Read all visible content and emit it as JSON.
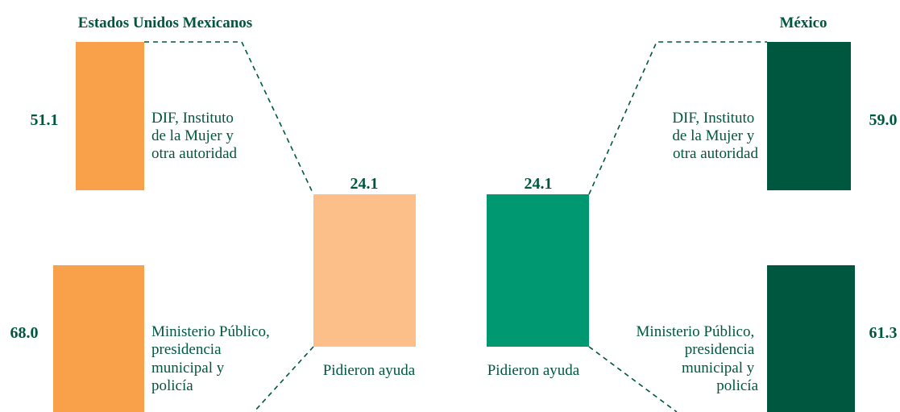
{
  "left": {
    "title": "Estados Unidos Mexicanos",
    "top": {
      "value": "51.1",
      "label": [
        "DIF,  Instituto",
        "de la Mujer y",
        "otra autoridad"
      ]
    },
    "bottom": {
      "value": "68.0",
      "label": [
        "Ministerio Público,",
        "presidencia",
        "municipal y",
        "policía"
      ]
    },
    "center": {
      "value": "24.1",
      "label": "Pidieron ayuda"
    }
  },
  "right": {
    "title": "México",
    "top": {
      "value": "59.0",
      "label": [
        "DIF,  Instituto",
        "de la Mujer y",
        "otra autoridad"
      ]
    },
    "bottom": {
      "value": "61.3",
      "label": [
        "Ministerio Público,",
        "presidencia",
        "municipal y",
        "policía"
      ]
    },
    "center": {
      "value": "24.1",
      "label": "Pidieron ayuda"
    }
  }
}
